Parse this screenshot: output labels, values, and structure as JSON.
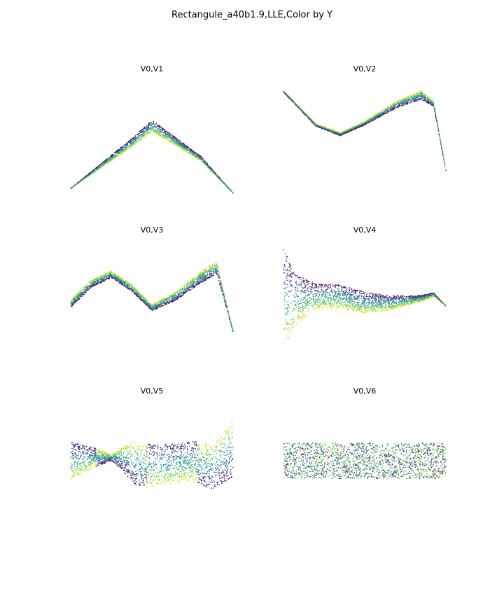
{
  "figure": {
    "title": "Rectangule_a40b1.9,LLE,Color by Y"
  },
  "colormap": [
    "#440154",
    "#3b528b",
    "#21918c",
    "#5ec962",
    "#fde725"
  ],
  "chart_data": [
    {
      "type": "scatter",
      "title": "V0,V1",
      "axes_visible": false,
      "color_by": "Y",
      "x_range": [
        -1,
        1
      ],
      "y_range": [
        -0.5,
        0.6
      ],
      "band_center": [
        [
          -1.0,
          -0.38
        ],
        [
          -0.6,
          -0.17
        ],
        [
          -0.2,
          0.04
        ],
        [
          0.0,
          0.16
        ],
        [
          0.2,
          0.07
        ],
        [
          0.6,
          -0.12
        ],
        [
          1.0,
          -0.42
        ]
      ],
      "band_halfwidth": [
        [
          -1.0,
          0.0
        ],
        [
          0.0,
          0.05
        ],
        [
          1.0,
          0.0
        ]
      ],
      "color_gradient": "yellow-below-dark-above"
    },
    {
      "type": "scatter",
      "title": "V0,V2",
      "axes_visible": false,
      "color_by": "Y",
      "x_range": [
        -1,
        1
      ],
      "y_range": [
        -0.9,
        0.5
      ],
      "band_center": [
        [
          -1.0,
          0.32
        ],
        [
          -0.6,
          -0.05
        ],
        [
          -0.3,
          -0.15
        ],
        [
          0.0,
          -0.03
        ],
        [
          0.4,
          0.18
        ],
        [
          0.7,
          0.28
        ],
        [
          0.85,
          0.18
        ],
        [
          1.0,
          -0.55
        ]
      ],
      "band_halfwidth": [
        [
          -1.0,
          0.01
        ],
        [
          0.0,
          0.02
        ],
        [
          0.7,
          0.05
        ],
        [
          1.0,
          0.0
        ]
      ],
      "color_gradient": "yellow-above-dark-below"
    },
    {
      "type": "scatter",
      "title": "V0,V3",
      "axes_visible": false,
      "color_by": "Y",
      "x_range": [
        -1,
        1
      ],
      "y_range": [
        -1.0,
        0.6
      ],
      "band_center": [
        [
          -1.0,
          -0.25
        ],
        [
          -0.75,
          0.0
        ],
        [
          -0.5,
          0.12
        ],
        [
          -0.25,
          -0.05
        ],
        [
          0.0,
          -0.3
        ],
        [
          0.3,
          -0.15
        ],
        [
          0.6,
          0.08
        ],
        [
          0.8,
          0.2
        ],
        [
          1.0,
          -0.6
        ]
      ],
      "band_halfwidth": [
        [
          -1.0,
          0.05
        ],
        [
          0.0,
          0.04
        ],
        [
          0.8,
          0.08
        ],
        [
          1.0,
          0.0
        ]
      ],
      "color_gradient": "yellow-above-dark-below"
    },
    {
      "type": "scatter",
      "title": "V0,V4",
      "axes_visible": false,
      "color_by": "Y",
      "x_range": [
        -1,
        1
      ],
      "y_range": [
        -1.0,
        1.0
      ],
      "band_center": [
        [
          -1.0,
          0.0
        ],
        [
          -0.85,
          0.0
        ],
        [
          -0.6,
          0.05
        ],
        [
          -0.3,
          0.05
        ],
        [
          0.0,
          -0.05
        ],
        [
          0.3,
          -0.05
        ],
        [
          0.7,
          0.02
        ],
        [
          0.85,
          0.08
        ],
        [
          1.0,
          -0.1
        ]
      ],
      "band_halfwidth": [
        [
          -1.0,
          0.8
        ],
        [
          -0.85,
          0.4
        ],
        [
          -0.6,
          0.2
        ],
        [
          0.0,
          0.17
        ],
        [
          0.5,
          0.08
        ],
        [
          0.85,
          0.03
        ],
        [
          1.0,
          0.0
        ]
      ],
      "color_gradient": "dark-top-yellow-bottom"
    },
    {
      "type": "scatter",
      "title": "V0,V5",
      "axes_visible": false,
      "color_by": "Y",
      "x_range": [
        -1,
        1
      ],
      "y_range": [
        -1.0,
        1.0
      ],
      "band_center": [
        [
          -1.0,
          0.0
        ],
        [
          -0.7,
          0.05
        ],
        [
          -0.4,
          0.05
        ],
        [
          -0.1,
          -0.08
        ],
        [
          0.2,
          -0.05
        ],
        [
          0.5,
          0.0
        ],
        [
          0.75,
          -0.1
        ],
        [
          1.0,
          0.2
        ]
      ],
      "band_halfwidth": [
        [
          -1.0,
          0.3
        ],
        [
          -0.5,
          0.05
        ],
        [
          -0.2,
          0.35
        ],
        [
          0.4,
          0.3
        ],
        [
          0.75,
          0.35
        ],
        [
          1.0,
          0.45
        ]
      ],
      "color_gradient": "alternating-flip"
    },
    {
      "type": "scatter",
      "title": "V0,V6",
      "axes_visible": false,
      "color_by": "Y",
      "x_range": [
        -1,
        1
      ],
      "y_range": [
        -1.0,
        1.0
      ],
      "band_center": [
        [
          -1.0,
          0.0
        ],
        [
          1.0,
          0.0
        ]
      ],
      "band_halfwidth": [
        [
          -1.0,
          0.28
        ],
        [
          1.0,
          0.28
        ]
      ],
      "color_gradient": "random"
    }
  ]
}
